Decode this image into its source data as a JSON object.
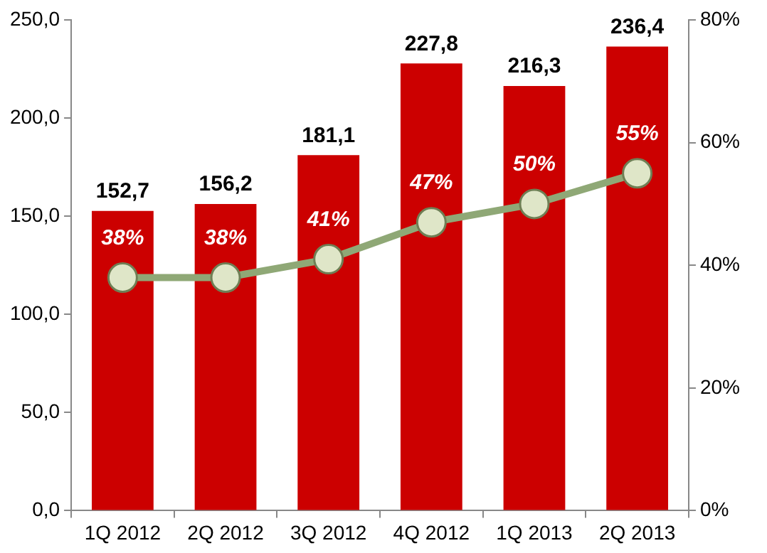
{
  "chart_data": {
    "type": "bar",
    "categories": [
      "1Q 2012",
      "2Q 2012",
      "3Q 2012",
      "4Q 2012",
      "1Q 2013",
      "2Q 2013"
    ],
    "series": [
      {
        "color": "#cc0000",
        "values": [
          152.7,
          156.2,
          181.1,
          227.8,
          216.3,
          236.4
        ],
        "value_labels": [
          "152,7",
          "156,2",
          "181,1",
          "227,8",
          "216,3",
          "236,4"
        ]
      },
      {
        "type": "line",
        "axis": "y2",
        "color": "#8fa876",
        "values": [
          38,
          38,
          41,
          47,
          50,
          55
        ],
        "value_labels": [
          "38%",
          "38%",
          "41%",
          "47%",
          "50%",
          "55%"
        ]
      }
    ],
    "ylim": [
      0,
      250
    ],
    "yticks": [
      {
        "value": 0,
        "label": "0,0"
      },
      {
        "value": 50,
        "label": "50,0"
      },
      {
        "value": 100,
        "label": "100,0"
      },
      {
        "value": 150,
        "label": "150,0"
      },
      {
        "value": 200,
        "label": "200,0"
      },
      {
        "value": 250,
        "label": "250,0"
      }
    ],
    "y2lim": [
      0,
      80
    ],
    "y2ticks": [
      {
        "value": 0,
        "label": "0%"
      },
      {
        "value": 20,
        "label": "20%"
      },
      {
        "value": 40,
        "label": "40%"
      },
      {
        "value": 60,
        "label": "60%"
      },
      {
        "value": 80,
        "label": "80%"
      }
    ],
    "grid": false,
    "legend": false,
    "marker": "circle"
  }
}
